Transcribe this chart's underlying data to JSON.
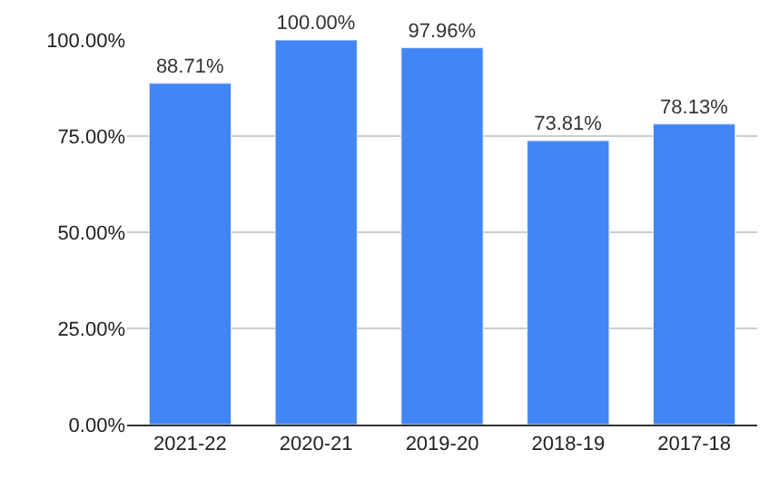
{
  "chart_data": {
    "type": "bar",
    "categories": [
      "2021-22",
      "2020-21",
      "2019-20",
      "2018-19",
      "2017-18"
    ],
    "values": [
      88.71,
      100,
      97.96,
      73.81,
      78.13
    ],
    "value_labels": [
      "88.71%",
      "100.00%",
      "97.96%",
      "73.81%",
      "78.13%"
    ],
    "color": "#4285f4",
    "ylim": [
      0,
      100
    ],
    "yticks": [
      {
        "value": 0,
        "label": "0.00%"
      },
      {
        "value": 25,
        "label": "25.00%"
      },
      {
        "value": 50,
        "label": "50.00%"
      },
      {
        "value": 75,
        "label": "75.00%"
      },
      {
        "value": 100,
        "label": "100.00%"
      }
    ],
    "grid": "y"
  }
}
